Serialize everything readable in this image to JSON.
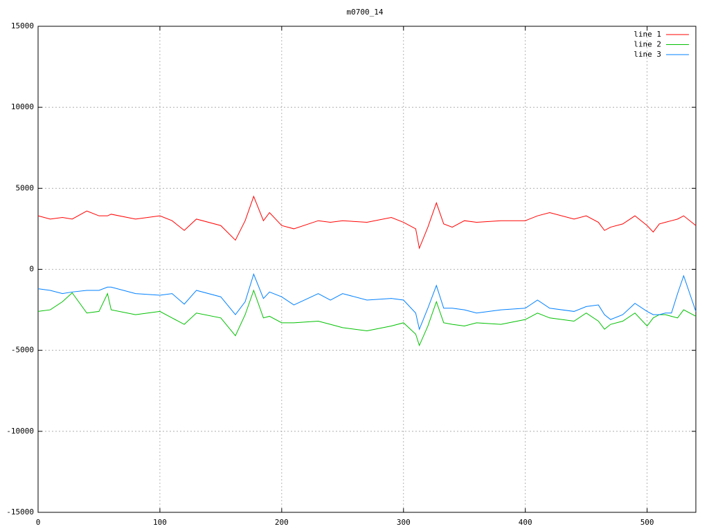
{
  "chart_data": {
    "type": "line",
    "title": "m0700_14",
    "x": [
      0,
      10,
      20,
      28,
      40,
      50,
      57,
      60,
      80,
      100,
      110,
      120,
      130,
      150,
      162,
      170,
      177,
      185,
      190,
      200,
      210,
      230,
      240,
      250,
      270,
      290,
      300,
      310,
      313,
      320,
      327,
      333,
      340,
      350,
      360,
      380,
      400,
      410,
      420,
      440,
      450,
      460,
      465,
      470,
      480,
      490,
      500,
      505,
      510,
      515,
      520,
      525,
      530,
      540
    ],
    "series": [
      {
        "name": "line 1",
        "color": "#ff0000",
        "values": [
          3300,
          3100,
          3200,
          3100,
          3600,
          3300,
          3300,
          3400,
          3100,
          3300,
          3000,
          2400,
          3100,
          2700,
          1800,
          3000,
          4500,
          3000,
          3500,
          2700,
          2500,
          3000,
          2900,
          3000,
          2900,
          3200,
          2900,
          2500,
          1300,
          2600,
          4100,
          2800,
          2600,
          3000,
          2900,
          3000,
          3000,
          3300,
          3500,
          3100,
          3300,
          2900,
          2400,
          2600,
          2800,
          3300,
          2700,
          2300,
          2800,
          2900,
          3000,
          3100,
          3300,
          2700
        ]
      },
      {
        "name": "line 2",
        "color": "#00c000",
        "values": [
          -2600,
          -2500,
          -2000,
          -1450,
          -2700,
          -2600,
          -1500,
          -2500,
          -2800,
          -2600,
          -3000,
          -3400,
          -2700,
          -3000,
          -4100,
          -2800,
          -1300,
          -3000,
          -2900,
          -3300,
          -3300,
          -3200,
          -3400,
          -3600,
          -3800,
          -3500,
          -3300,
          -4000,
          -4700,
          -3500,
          -2000,
          -3300,
          -3400,
          -3500,
          -3300,
          -3400,
          -3100,
          -2700,
          -3000,
          -3200,
          -2700,
          -3200,
          -3700,
          -3400,
          -3200,
          -2700,
          -3500,
          -3000,
          -2800,
          -2800,
          -2900,
          -3000,
          -2500,
          -2900
        ]
      },
      {
        "name": "line 3",
        "color": "#0080ff",
        "values": [
          -1200,
          -1300,
          -1500,
          -1400,
          -1300,
          -1300,
          -1100,
          -1100,
          -1500,
          -1600,
          -1500,
          -2150,
          -1300,
          -1700,
          -2800,
          -2000,
          -300,
          -1800,
          -1400,
          -1700,
          -2200,
          -1500,
          -1900,
          -1500,
          -1900,
          -1800,
          -1900,
          -2700,
          -3700,
          -2400,
          -1000,
          -2400,
          -2400,
          -2500,
          -2700,
          -2500,
          -2400,
          -1900,
          -2400,
          -2600,
          -2300,
          -2200,
          -2800,
          -3100,
          -2800,
          -2100,
          -2600,
          -2800,
          -2800,
          -2700,
          -2700,
          -1500,
          -400,
          -2600
        ]
      }
    ],
    "xlim": [
      0,
      540
    ],
    "xticks": [
      0,
      100,
      200,
      300,
      400,
      500
    ],
    "ylim": [
      -15000,
      15000
    ],
    "yticks": [
      -15000,
      -10000,
      -5000,
      0,
      5000,
      10000,
      15000
    ],
    "grid": true,
    "legend": "top-right"
  }
}
